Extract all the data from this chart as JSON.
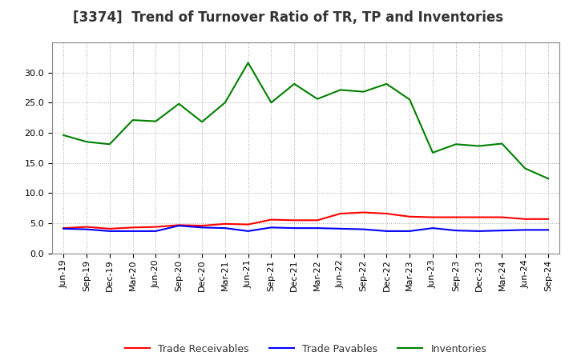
{
  "title": "[3374]  Trend of Turnover Ratio of TR, TP and Inventories",
  "ylim": [
    0,
    35
  ],
  "yticks": [
    0.0,
    5.0,
    10.0,
    15.0,
    20.0,
    25.0,
    30.0
  ],
  "labels": [
    "Jun-19",
    "Sep-19",
    "Dec-19",
    "Mar-20",
    "Jun-20",
    "Sep-20",
    "Dec-20",
    "Mar-21",
    "Jun-21",
    "Sep-21",
    "Dec-21",
    "Mar-22",
    "Jun-22",
    "Sep-22",
    "Dec-22",
    "Mar-23",
    "Jun-23",
    "Sep-23",
    "Dec-23",
    "Mar-24",
    "Jun-24",
    "Sep-24"
  ],
  "trade_receivables": [
    4.2,
    4.4,
    4.1,
    4.3,
    4.4,
    4.7,
    4.6,
    4.9,
    4.8,
    5.6,
    5.5,
    5.5,
    6.6,
    6.8,
    6.6,
    6.1,
    6.0,
    6.0,
    6.0,
    6.0,
    5.7,
    5.7
  ],
  "trade_payables": [
    4.1,
    4.0,
    3.7,
    3.7,
    3.7,
    4.6,
    4.3,
    4.2,
    3.7,
    4.3,
    4.2,
    4.2,
    4.1,
    4.0,
    3.7,
    3.7,
    4.2,
    3.8,
    3.7,
    3.8,
    3.9,
    3.9
  ],
  "inventories": [
    19.6,
    18.5,
    18.1,
    22.1,
    21.9,
    24.8,
    21.8,
    25.0,
    31.6,
    25.0,
    28.1,
    25.6,
    27.1,
    26.8,
    28.1,
    25.5,
    16.7,
    18.1,
    17.8,
    18.2,
    14.1,
    12.4
  ],
  "color_tr": "#ff0000",
  "color_tp": "#0000ff",
  "color_inv": "#008000",
  "legend_labels": [
    "Trade Receivables",
    "Trade Payables",
    "Inventories"
  ],
  "background_color": "#ffffff",
  "grid_color": "#aaaaaa",
  "title_fontsize": 12,
  "tick_fontsize": 8,
  "legend_fontsize": 9
}
